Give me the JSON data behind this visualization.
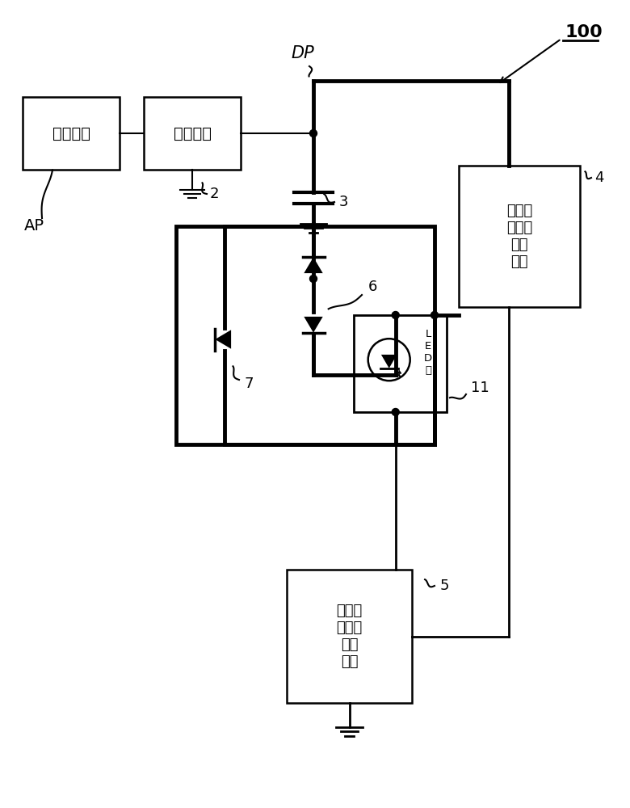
{
  "bg_color": "#ffffff",
  "lc": "#000000",
  "fig_w": 7.8,
  "fig_h": 10.0,
  "box1_text": "交流电源",
  "box2_text": "整流电路",
  "box4_text": "电容器\n放电用\n恒流\n电路",
  "box5_text": "电容器\n充电用\n恒流\n电路",
  "led_label": "L\nE\nD\n部",
  "label_100": "100",
  "label_AP": "AP",
  "label_DP": "DP",
  "label_2": "2",
  "label_3": "3",
  "label_4": "4",
  "label_5": "5",
  "label_6": "6",
  "label_7": "7",
  "label_11": "11"
}
